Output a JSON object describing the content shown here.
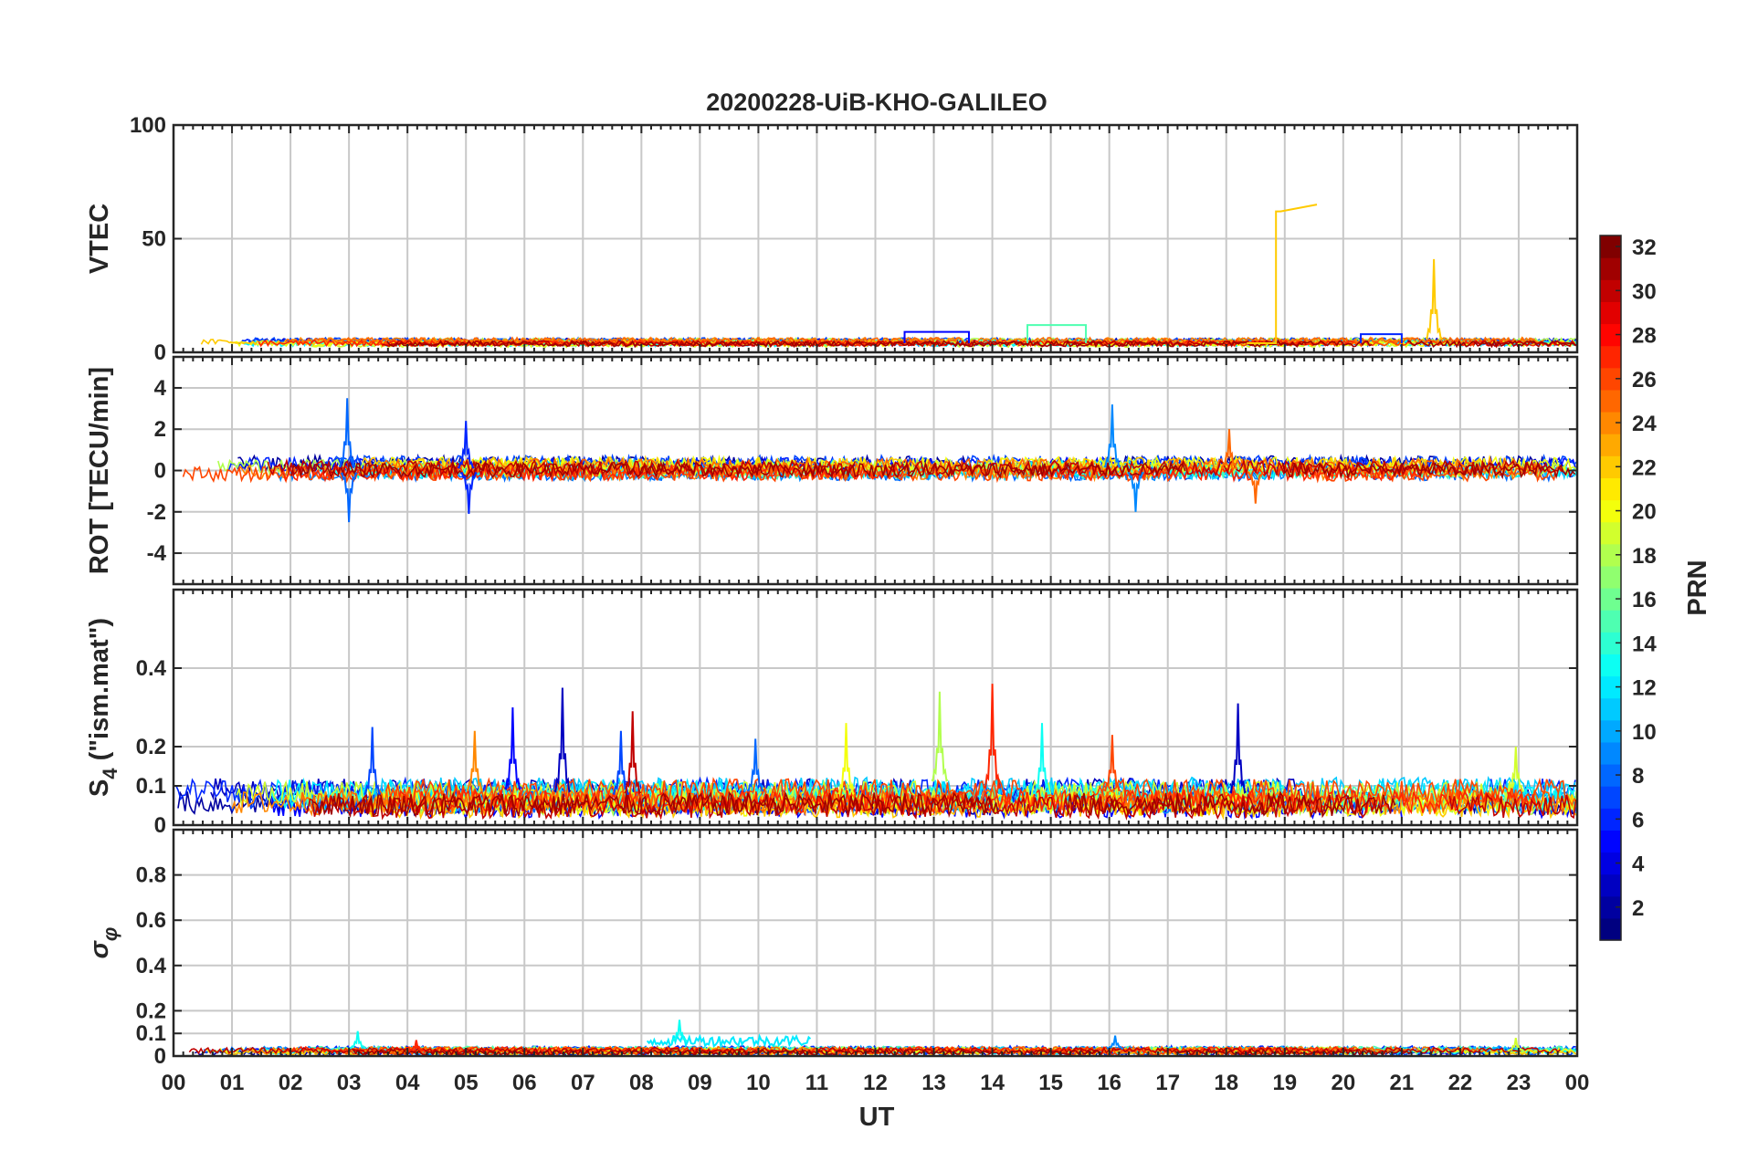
{
  "chart_data": {
    "type": "line",
    "title": "20200228-UiB-KHO-GALILEO",
    "xlabel": "UT",
    "x_ticks": [
      "00",
      "01",
      "02",
      "03",
      "04",
      "05",
      "06",
      "07",
      "08",
      "09",
      "10",
      "11",
      "12",
      "13",
      "14",
      "15",
      "16",
      "17",
      "18",
      "19",
      "20",
      "21",
      "22",
      "23",
      "00"
    ],
    "xlim": [
      0,
      24
    ],
    "panels": [
      {
        "name": "vtec",
        "ylabel": "VTEC",
        "ylim": [
          0,
          100
        ],
        "yticks": [
          0,
          50,
          100
        ],
        "ytick_labels": [
          "0",
          "50",
          "100"
        ],
        "baseline": 4,
        "noise": 1.2,
        "features": [
          {
            "prn": 22,
            "type": "jump",
            "t_start": 18.85,
            "t_end": 19.55,
            "v_start": 62,
            "v_end": 65,
            "base": 4
          },
          {
            "prn": 22,
            "type": "spike",
            "t": 21.55,
            "peak": 41,
            "base": 4
          },
          {
            "prn": 15,
            "type": "plateau",
            "t_start": 14.6,
            "t_end": 15.6,
            "value": 12
          },
          {
            "prn": 5,
            "type": "plateau",
            "t_start": 12.5,
            "t_end": 13.6,
            "value": 9
          },
          {
            "prn": 6,
            "type": "plateau",
            "t_start": 20.3,
            "t_end": 21.0,
            "value": 8
          }
        ]
      },
      {
        "name": "rot",
        "ylabel": "ROT [TECU/min]",
        "ylim": [
          -5.5,
          5.5
        ],
        "yticks": [
          -4,
          -2,
          0,
          2,
          4
        ],
        "ytick_labels": [
          "-4",
          "-2",
          "0",
          "2",
          "4"
        ],
        "baseline": 0,
        "noise": 0.35,
        "features": [
          {
            "prn": 8,
            "type": "spike",
            "t": 2.97,
            "peak": 3.5,
            "base": 0
          },
          {
            "prn": 8,
            "type": "spike",
            "t": 3.0,
            "peak": -2.5,
            "base": 0
          },
          {
            "prn": 6,
            "type": "spike",
            "t": 5.0,
            "peak": 2.4,
            "base": 0
          },
          {
            "prn": 6,
            "type": "spike",
            "t": 5.05,
            "peak": -2.1,
            "base": 0
          },
          {
            "prn": 9,
            "type": "spike",
            "t": 16.05,
            "peak": 3.2,
            "base": 0
          },
          {
            "prn": 9,
            "type": "spike",
            "t": 16.45,
            "peak": -2.0,
            "base": 0
          },
          {
            "prn": 25,
            "type": "spike",
            "t": 18.05,
            "peak": 2.0,
            "base": 0
          },
          {
            "prn": 25,
            "type": "spike",
            "t": 18.5,
            "peak": -1.6,
            "base": 0
          }
        ]
      },
      {
        "name": "s4",
        "ylabel": "S4 (\"ism.mat\")",
        "ylim": [
          0,
          0.6
        ],
        "yticks": [
          0,
          0.1,
          0.2,
          0.4
        ],
        "ytick_labels": [
          "0",
          "0.1",
          "0.2",
          "0.4"
        ],
        "baseline": 0.06,
        "noise": 0.03,
        "features": [
          {
            "prn": 7,
            "type": "spike",
            "t": 3.4,
            "peak": 0.25,
            "base": 0.07
          },
          {
            "prn": 24,
            "type": "spike",
            "t": 5.15,
            "peak": 0.24,
            "base": 0.08
          },
          {
            "prn": 5,
            "type": "spike",
            "t": 5.8,
            "peak": 0.3,
            "base": 0.08
          },
          {
            "prn": 3,
            "type": "spike",
            "t": 6.65,
            "peak": 0.35,
            "base": 0.07
          },
          {
            "prn": 7,
            "type": "spike",
            "t": 7.65,
            "peak": 0.24,
            "base": 0.07
          },
          {
            "prn": 30,
            "type": "spike",
            "t": 7.85,
            "peak": 0.29,
            "base": 0.07
          },
          {
            "prn": 8,
            "type": "spike",
            "t": 9.95,
            "peak": 0.22,
            "base": 0.08
          },
          {
            "prn": 20,
            "type": "spike",
            "t": 11.5,
            "peak": 0.26,
            "base": 0.07
          },
          {
            "prn": 18,
            "type": "spike",
            "t": 13.1,
            "peak": 0.34,
            "base": 0.1
          },
          {
            "prn": 27,
            "type": "spike",
            "t": 14.0,
            "peak": 0.36,
            "base": 0.08
          },
          {
            "prn": 13,
            "type": "spike",
            "t": 14.85,
            "peak": 0.26,
            "base": 0.07
          },
          {
            "prn": 26,
            "type": "spike",
            "t": 16.05,
            "peak": 0.23,
            "base": 0.08
          },
          {
            "prn": 3,
            "type": "spike",
            "t": 18.2,
            "peak": 0.31,
            "base": 0.07
          },
          {
            "prn": 19,
            "type": "spike",
            "t": 22.95,
            "peak": 0.2,
            "base": 0.08
          }
        ]
      },
      {
        "name": "sigma_phi",
        "ylabel": "σφ",
        "ylim": [
          0,
          1
        ],
        "yticks": [
          0,
          0.1,
          0.2,
          0.4,
          0.6,
          0.8
        ],
        "ytick_labels": [
          "0",
          "0.1",
          "0.2",
          "0.4",
          "0.6",
          "0.8"
        ],
        "baseline": 0.02,
        "noise": 0.012,
        "features": [
          {
            "prn": 12,
            "type": "band",
            "t_start": 8.1,
            "t_end": 10.9,
            "value": 0.08
          },
          {
            "prn": 13,
            "type": "spike",
            "t": 3.15,
            "peak": 0.11,
            "base": 0.03
          },
          {
            "prn": 13,
            "type": "spike",
            "t": 8.65,
            "peak": 0.16,
            "base": 0.06
          },
          {
            "prn": 27,
            "type": "spike",
            "t": 4.15,
            "peak": 0.07,
            "base": 0.02
          },
          {
            "prn": 9,
            "type": "spike",
            "t": 16.1,
            "peak": 0.09,
            "base": 0.03
          },
          {
            "prn": 19,
            "type": "spike",
            "t": 22.95,
            "peak": 0.08,
            "base": 0.02
          }
        ]
      }
    ],
    "colorbar": {
      "label": "PRN",
      "min": 1,
      "max": 32,
      "ticks": [
        2,
        4,
        6,
        8,
        10,
        12,
        14,
        16,
        18,
        20,
        22,
        24,
        26,
        28,
        30,
        32
      ],
      "tick_labels": [
        "2",
        "4",
        "6",
        "8",
        "10",
        "12",
        "14",
        "16",
        "18",
        "20",
        "22",
        "24",
        "26",
        "28",
        "30",
        "32"
      ],
      "colormap": "jet"
    },
    "series_prns": [
      2,
      3,
      5,
      6,
      7,
      8,
      9,
      11,
      12,
      13,
      15,
      18,
      19,
      20,
      22,
      24,
      25,
      26,
      27,
      30,
      31
    ]
  }
}
